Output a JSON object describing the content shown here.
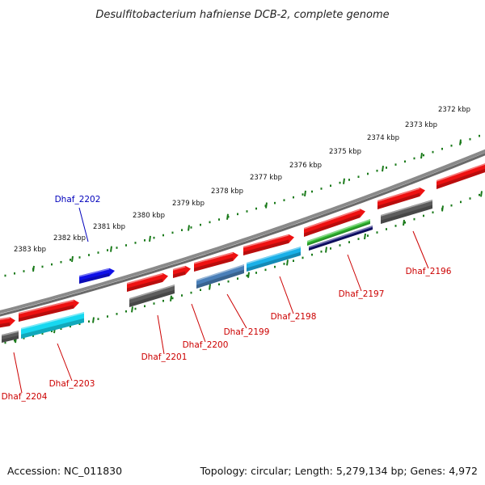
{
  "title": "Desulfitobacterium hafniense DCB-2, complete genome",
  "footer": {
    "accession": "Accession: NC_011830",
    "topology": "Topology: circular; Length: 5,279,134 bp; Genes: 4,972"
  },
  "colors": {
    "backbone": "#7a7a7a",
    "tick_green": "#1a7a1a",
    "red": "#ee1111",
    "gray": "#5c5c5c",
    "cyan": "#17d8f0",
    "blue": "#1010e8",
    "steel": "#4a7fb8",
    "sky": "#1ab0e8",
    "green": "#33bb33",
    "navy": "#101070",
    "label_red": "#cc0000",
    "label_blue": "#0000bb"
  },
  "outer_ruler": {
    "labels": [
      "2372 kbp",
      "2373 kbp",
      "2374 kbp",
      "2375 kbp",
      "2376 kbp",
      "2377 kbp",
      "2378 kbp",
      "2379 kbp",
      "2380 kbp",
      "2381 kbp",
      "2382 kbp",
      "2383 kbp"
    ]
  },
  "genes": [
    {
      "label": "Dhaf_2196",
      "color": "label_red"
    },
    {
      "label": "Dhaf_2197",
      "color": "label_red"
    },
    {
      "label": "Dhaf_2198",
      "color": "label_red"
    },
    {
      "label": "Dhaf_2199",
      "color": "label_red"
    },
    {
      "label": "Dhaf_2200",
      "color": "label_red"
    },
    {
      "label": "Dhaf_2201",
      "color": "label_red"
    },
    {
      "label": "Dhaf_2202",
      "color": "label_blue"
    },
    {
      "label": "Dhaf_2203",
      "color": "label_red"
    },
    {
      "label": "Dhaf_2204",
      "color": "label_red"
    }
  ]
}
